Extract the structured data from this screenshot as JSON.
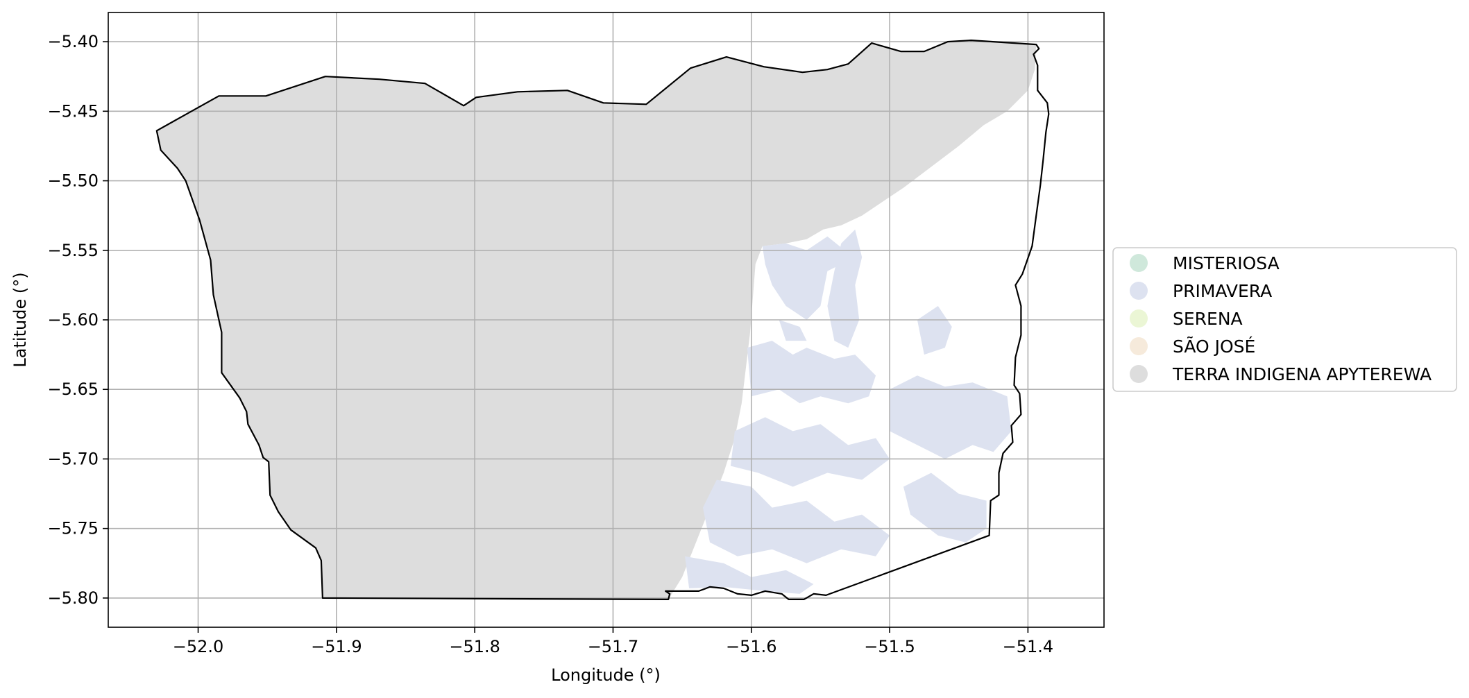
{
  "chart_data": {
    "type": "map",
    "title": "",
    "xlabel": "Longitude (°)",
    "ylabel": "Latitude (°)",
    "xlim": [
      -52.065,
      -51.345
    ],
    "ylim": [
      -5.821,
      -5.379
    ],
    "xticks": [
      -52.0,
      -51.9,
      -51.8,
      -51.7,
      -51.6,
      -51.5,
      -51.4
    ],
    "xtick_labels": [
      "−52.0",
      "−51.9",
      "−51.8",
      "−51.7",
      "−51.6",
      "−51.5",
      "−51.4"
    ],
    "yticks": [
      -5.4,
      -5.45,
      -5.5,
      -5.55,
      -5.6,
      -5.65,
      -5.7,
      -5.75,
      -5.8
    ],
    "ytick_labels": [
      "−5.40",
      "−5.45",
      "−5.50",
      "−5.55",
      "−5.60",
      "−5.65",
      "−5.70",
      "−5.75",
      "−5.80"
    ],
    "grid": true,
    "legend_position": "right",
    "categories": [
      {
        "name": "MISTERIOSA",
        "color": "#cfe8db"
      },
      {
        "name": "PRIMAVERA",
        "color": "#dde2f0"
      },
      {
        "name": "SERENA",
        "color": "#ebf6d5"
      },
      {
        "name": "SÃO JOSÉ",
        "color": "#f6eadb"
      },
      {
        "name": "TERRA INDIGENA APYTEREWA",
        "color": "#dddddd"
      }
    ],
    "outline": [
      [
        -52.03,
        -5.464
      ],
      [
        -52.027,
        -5.478
      ],
      [
        -52.015,
        -5.491
      ],
      [
        -52.009,
        -5.5
      ],
      [
        -51.999,
        -5.528
      ],
      [
        -51.991,
        -5.557
      ],
      [
        -51.989,
        -5.582
      ],
      [
        -51.983,
        -5.609
      ],
      [
        -51.983,
        -5.638
      ],
      [
        -51.97,
        -5.656
      ],
      [
        -51.965,
        -5.666
      ],
      [
        -51.964,
        -5.675
      ],
      [
        -51.956,
        -5.69
      ],
      [
        -51.953,
        -5.699
      ],
      [
        -51.949,
        -5.702
      ],
      [
        -51.948,
        -5.726
      ],
      [
        -51.942,
        -5.738
      ],
      [
        -51.933,
        -5.751
      ],
      [
        -51.915,
        -5.764
      ],
      [
        -51.911,
        -5.773
      ],
      [
        -51.91,
        -5.8
      ],
      [
        -51.66,
        -5.801
      ],
      [
        -51.659,
        -5.797
      ],
      [
        -51.662,
        -5.795
      ],
      [
        -51.638,
        -5.795
      ],
      [
        -51.63,
        -5.792
      ],
      [
        -51.62,
        -5.793
      ],
      [
        -51.61,
        -5.797
      ],
      [
        -51.6,
        -5.798
      ],
      [
        -51.59,
        -5.795
      ],
      [
        -51.578,
        -5.797
      ],
      [
        -51.573,
        -5.801
      ],
      [
        -51.562,
        -5.801
      ],
      [
        -51.555,
        -5.797
      ],
      [
        -51.546,
        -5.798
      ],
      [
        -51.428,
        -5.755
      ],
      [
        -51.427,
        -5.73
      ],
      [
        -51.421,
        -5.726
      ],
      [
        -51.421,
        -5.71
      ],
      [
        -51.418,
        -5.696
      ],
      [
        -51.411,
        -5.688
      ],
      [
        -51.412,
        -5.676
      ],
      [
        -51.405,
        -5.668
      ],
      [
        -51.406,
        -5.653
      ],
      [
        -51.41,
        -5.647
      ],
      [
        -51.409,
        -5.627
      ],
      [
        -51.405,
        -5.611
      ],
      [
        -51.405,
        -5.59
      ],
      [
        -51.409,
        -5.575
      ],
      [
        -51.404,
        -5.567
      ],
      [
        -51.397,
        -5.547
      ],
      [
        -51.394,
        -5.525
      ],
      [
        -51.391,
        -5.503
      ],
      [
        -51.389,
        -5.485
      ],
      [
        -51.387,
        -5.465
      ],
      [
        -51.385,
        -5.452
      ],
      [
        -51.386,
        -5.444
      ],
      [
        -51.393,
        -5.435
      ],
      [
        -51.393,
        -5.417
      ],
      [
        -51.396,
        -5.409
      ],
      [
        -51.392,
        -5.405
      ],
      [
        -51.394,
        -5.402
      ],
      [
        -51.441,
        -5.399
      ],
      [
        -51.458,
        -5.4
      ],
      [
        -51.475,
        -5.407
      ],
      [
        -51.492,
        -5.407
      ],
      [
        -51.513,
        -5.401
      ],
      [
        -51.53,
        -5.416
      ],
      [
        -51.545,
        -5.42
      ],
      [
        -51.563,
        -5.422
      ],
      [
        -51.591,
        -5.418
      ],
      [
        -51.618,
        -5.411
      ],
      [
        -51.644,
        -5.419
      ],
      [
        -51.676,
        -5.445
      ],
      [
        -51.707,
        -5.444
      ],
      [
        -51.733,
        -5.435
      ],
      [
        -51.769,
        -5.436
      ],
      [
        -51.799,
        -5.44
      ],
      [
        -51.808,
        -5.446
      ],
      [
        -51.836,
        -5.43
      ],
      [
        -51.869,
        -5.427
      ],
      [
        -51.908,
        -5.425
      ],
      [
        -51.951,
        -5.439
      ],
      [
        -51.985,
        -5.439
      ],
      [
        -52.03,
        -5.464
      ]
    ],
    "regions": [
      {
        "category": "TERRA INDIGENA APYTEREWA",
        "polygon": [
          [
            -52.03,
            -5.464
          ],
          [
            -52.027,
            -5.478
          ],
          [
            -52.015,
            -5.491
          ],
          [
            -52.009,
            -5.5
          ],
          [
            -51.999,
            -5.528
          ],
          [
            -51.991,
            -5.557
          ],
          [
            -51.989,
            -5.582
          ],
          [
            -51.983,
            -5.609
          ],
          [
            -51.983,
            -5.638
          ],
          [
            -51.97,
            -5.656
          ],
          [
            -51.965,
            -5.666
          ],
          [
            -51.964,
            -5.675
          ],
          [
            -51.956,
            -5.69
          ],
          [
            -51.953,
            -5.699
          ],
          [
            -51.949,
            -5.702
          ],
          [
            -51.948,
            -5.726
          ],
          [
            -51.942,
            -5.738
          ],
          [
            -51.933,
            -5.751
          ],
          [
            -51.915,
            -5.764
          ],
          [
            -51.911,
            -5.773
          ],
          [
            -51.91,
            -5.8
          ],
          [
            -51.66,
            -5.801
          ],
          [
            -51.65,
            -5.785
          ],
          [
            -51.64,
            -5.76
          ],
          [
            -51.63,
            -5.735
          ],
          [
            -51.62,
            -5.71
          ],
          [
            -51.612,
            -5.685
          ],
          [
            -51.607,
            -5.66
          ],
          [
            -51.604,
            -5.635
          ],
          [
            -51.601,
            -5.61
          ],
          [
            -51.599,
            -5.585
          ],
          [
            -51.597,
            -5.56
          ],
          [
            -51.592,
            -5.547
          ],
          [
            -51.575,
            -5.545
          ],
          [
            -51.56,
            -5.542
          ],
          [
            -51.548,
            -5.535
          ],
          [
            -51.535,
            -5.532
          ],
          [
            -51.52,
            -5.525
          ],
          [
            -51.505,
            -5.515
          ],
          [
            -51.49,
            -5.505
          ],
          [
            -51.47,
            -5.49
          ],
          [
            -51.45,
            -5.475
          ],
          [
            -51.432,
            -5.46
          ],
          [
            -51.415,
            -5.45
          ],
          [
            -51.4,
            -5.435
          ],
          [
            -51.395,
            -5.42
          ],
          [
            -51.394,
            -5.402
          ],
          [
            -51.441,
            -5.399
          ],
          [
            -51.458,
            -5.4
          ],
          [
            -51.475,
            -5.407
          ],
          [
            -51.492,
            -5.407
          ],
          [
            -51.513,
            -5.401
          ],
          [
            -51.53,
            -5.416
          ],
          [
            -51.545,
            -5.42
          ],
          [
            -51.563,
            -5.422
          ],
          [
            -51.591,
            -5.418
          ],
          [
            -51.618,
            -5.411
          ],
          [
            -51.644,
            -5.419
          ],
          [
            -51.676,
            -5.445
          ],
          [
            -51.707,
            -5.444
          ],
          [
            -51.733,
            -5.435
          ],
          [
            -51.769,
            -5.436
          ],
          [
            -51.799,
            -5.44
          ],
          [
            -51.808,
            -5.446
          ],
          [
            -51.836,
            -5.43
          ],
          [
            -51.869,
            -5.427
          ],
          [
            -51.908,
            -5.425
          ],
          [
            -51.951,
            -5.439
          ],
          [
            -51.985,
            -5.439
          ],
          [
            -52.03,
            -5.464
          ]
        ]
      },
      {
        "category": "PRIMAVERA",
        "polygon": [
          [
            -51.592,
            -5.547
          ],
          [
            -51.575,
            -5.545
          ],
          [
            -51.56,
            -5.55
          ],
          [
            -51.545,
            -5.54
          ],
          [
            -51.535,
            -5.548
          ],
          [
            -51.535,
            -5.56
          ],
          [
            -51.545,
            -5.565
          ],
          [
            -51.55,
            -5.59
          ],
          [
            -51.56,
            -5.6
          ],
          [
            -51.575,
            -5.59
          ],
          [
            -51.585,
            -5.575
          ],
          [
            -51.59,
            -5.56
          ]
        ]
      },
      {
        "category": "PRIMAVERA",
        "polygon": [
          [
            -51.535,
            -5.545
          ],
          [
            -51.525,
            -5.535
          ],
          [
            -51.52,
            -5.555
          ],
          [
            -51.525,
            -5.575
          ],
          [
            -51.522,
            -5.6
          ],
          [
            -51.53,
            -5.62
          ],
          [
            -51.54,
            -5.615
          ],
          [
            -51.545,
            -5.59
          ],
          [
            -51.54,
            -5.565
          ]
        ]
      },
      {
        "category": "PRIMAVERA",
        "polygon": [
          [
            -51.603,
            -5.62
          ],
          [
            -51.585,
            -5.615
          ],
          [
            -51.57,
            -5.625
          ],
          [
            -51.56,
            -5.62
          ],
          [
            -51.54,
            -5.628
          ],
          [
            -51.525,
            -5.625
          ],
          [
            -51.51,
            -5.64
          ],
          [
            -51.515,
            -5.655
          ],
          [
            -51.53,
            -5.66
          ],
          [
            -51.55,
            -5.655
          ],
          [
            -51.565,
            -5.66
          ],
          [
            -51.58,
            -5.65
          ],
          [
            -51.6,
            -5.655
          ]
        ]
      },
      {
        "category": "PRIMAVERA",
        "polygon": [
          [
            -51.5,
            -5.65
          ],
          [
            -51.48,
            -5.64
          ],
          [
            -51.46,
            -5.648
          ],
          [
            -51.44,
            -5.645
          ],
          [
            -51.415,
            -5.655
          ],
          [
            -51.412,
            -5.68
          ],
          [
            -51.425,
            -5.695
          ],
          [
            -51.44,
            -5.69
          ],
          [
            -51.46,
            -5.7
          ],
          [
            -51.48,
            -5.69
          ],
          [
            -51.5,
            -5.68
          ]
        ]
      },
      {
        "category": "PRIMAVERA",
        "polygon": [
          [
            -51.612,
            -5.68
          ],
          [
            -51.59,
            -5.67
          ],
          [
            -51.57,
            -5.68
          ],
          [
            -51.55,
            -5.675
          ],
          [
            -51.53,
            -5.69
          ],
          [
            -51.51,
            -5.685
          ],
          [
            -51.5,
            -5.7
          ],
          [
            -51.52,
            -5.715
          ],
          [
            -51.545,
            -5.71
          ],
          [
            -51.57,
            -5.72
          ],
          [
            -51.595,
            -5.71
          ],
          [
            -51.615,
            -5.705
          ]
        ]
      },
      {
        "category": "PRIMAVERA",
        "polygon": [
          [
            -51.625,
            -5.715
          ],
          [
            -51.6,
            -5.72
          ],
          [
            -51.585,
            -5.735
          ],
          [
            -51.56,
            -5.73
          ],
          [
            -51.54,
            -5.745
          ],
          [
            -51.52,
            -5.74
          ],
          [
            -51.5,
            -5.755
          ],
          [
            -51.51,
            -5.77
          ],
          [
            -51.535,
            -5.765
          ],
          [
            -51.56,
            -5.775
          ],
          [
            -51.585,
            -5.765
          ],
          [
            -51.61,
            -5.77
          ],
          [
            -51.63,
            -5.76
          ],
          [
            -51.635,
            -5.735
          ]
        ]
      },
      {
        "category": "PRIMAVERA",
        "polygon": [
          [
            -51.49,
            -5.72
          ],
          [
            -51.47,
            -5.71
          ],
          [
            -51.45,
            -5.725
          ],
          [
            -51.43,
            -5.73
          ],
          [
            -51.43,
            -5.75
          ],
          [
            -51.445,
            -5.76
          ],
          [
            -51.465,
            -5.755
          ],
          [
            -51.485,
            -5.74
          ]
        ]
      },
      {
        "category": "PRIMAVERA",
        "polygon": [
          [
            -51.648,
            -5.77
          ],
          [
            -51.62,
            -5.775
          ],
          [
            -51.6,
            -5.785
          ],
          [
            -51.575,
            -5.78
          ],
          [
            -51.555,
            -5.79
          ],
          [
            -51.565,
            -5.797
          ],
          [
            -51.59,
            -5.795
          ],
          [
            -51.62,
            -5.792
          ],
          [
            -51.645,
            -5.793
          ]
        ]
      },
      {
        "category": "PRIMAVERA",
        "polygon": [
          [
            -51.58,
            -5.6
          ],
          [
            -51.565,
            -5.605
          ],
          [
            -51.56,
            -5.615
          ],
          [
            -51.575,
            -5.615
          ]
        ]
      },
      {
        "category": "PRIMAVERA",
        "polygon": [
          [
            -51.48,
            -5.6
          ],
          [
            -51.465,
            -5.59
          ],
          [
            -51.455,
            -5.605
          ],
          [
            -51.46,
            -5.62
          ],
          [
            -51.475,
            -5.625
          ]
        ]
      }
    ]
  }
}
